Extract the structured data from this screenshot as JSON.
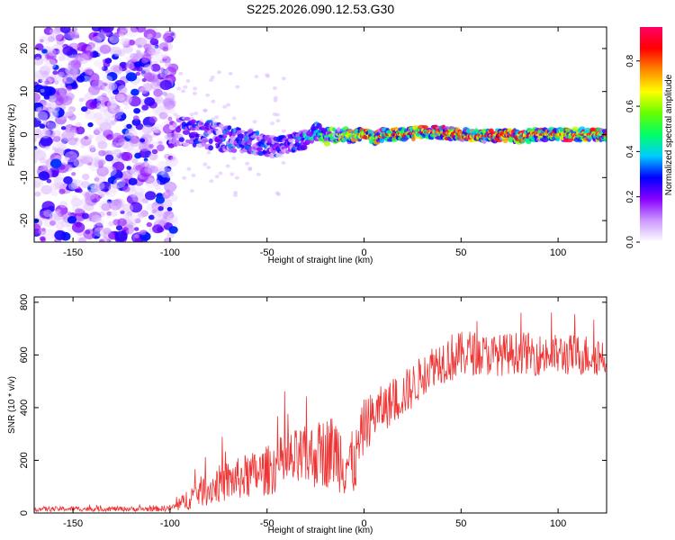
{
  "title": "S225.2026.090.12.53.G30",
  "chart_data": [
    {
      "type": "heatmap",
      "title": "S225.2026.090.12.53.G30",
      "xlabel": "Height of straight line (km)",
      "ylabel": "Frequency (Hz)",
      "xlim": [
        -170,
        125
      ],
      "ylim": [
        -25,
        25
      ],
      "xticks": [
        -150,
        -100,
        -50,
        0,
        50,
        100
      ],
      "yticks": [
        -20,
        -10,
        0,
        10,
        20
      ],
      "xtick_labels": [
        "-150",
        "-100",
        "-50",
        "0",
        "50",
        "100"
      ],
      "ytick_labels": [
        "-20",
        "-10",
        "0",
        "10",
        "20"
      ],
      "noise_region_x": [
        -170,
        -100
      ],
      "ridge": {
        "x": [
          -100,
          -90,
          -80,
          -70,
          -60,
          -50,
          -45,
          -40,
          -35,
          -30,
          -25,
          -20,
          -15,
          -10,
          -5,
          0,
          5,
          10,
          20,
          30,
          40,
          50,
          60,
          70,
          80,
          90,
          100,
          110,
          120,
          125
        ],
        "freq": [
          0.5,
          1.0,
          0.0,
          -1.0,
          -1.5,
          -2.5,
          -3.0,
          -2.5,
          -1.5,
          -1.0,
          1.0,
          -0.5,
          0.0,
          0.0,
          -0.5,
          0.5,
          -1.0,
          0.0,
          0.0,
          0.5,
          0.5,
          0.0,
          -0.5,
          0.0,
          -0.5,
          0.0,
          0.0,
          0.0,
          0.0,
          0.0
        ],
        "amplitude": [
          0.2,
          0.3,
          0.3,
          0.35,
          0.35,
          0.3,
          0.3,
          0.3,
          0.35,
          0.4,
          0.45,
          0.55,
          0.6,
          0.65,
          0.7,
          0.75,
          0.8,
          0.85,
          0.85,
          0.9,
          0.9,
          0.9,
          0.85,
          0.9,
          0.9,
          0.85,
          0.85,
          0.85,
          0.85,
          0.85
        ]
      },
      "colorbar": {
        "label": "Normalized spectral amplitude",
        "range": [
          0,
          0.95
        ],
        "ticks": [
          0.0,
          0.2,
          0.4,
          0.6,
          0.8
        ],
        "tick_labels": [
          "0.0",
          "0.2",
          "0.4",
          "0.6",
          "0.8"
        ],
        "colormap": [
          "#ffffff",
          "#cc99ff",
          "#8800ff",
          "#0000ff",
          "#00ccff",
          "#00ff66",
          "#66ff00",
          "#ffff00",
          "#ff8800",
          "#ff0000",
          "#ff0066"
        ]
      }
    },
    {
      "type": "line",
      "xlabel": "Height of straight line (km)",
      "ylabel": "SNR (10 * v/v)",
      "xlim": [
        -170,
        125
      ],
      "ylim": [
        0,
        820
      ],
      "xticks": [
        -150,
        -100,
        -50,
        0,
        50,
        100
      ],
      "yticks": [
        0,
        200,
        400,
        600,
        800
      ],
      "xtick_labels": [
        "-150",
        "-100",
        "-50",
        "0",
        "50",
        "100"
      ],
      "ytick_labels": [
        "0",
        "200",
        "400",
        "600",
        "800"
      ],
      "color": "#ee3333",
      "series": [
        {
          "name": "SNR",
          "x": [
            -170,
            -160,
            -150,
            -140,
            -130,
            -120,
            -110,
            -100,
            -95,
            -90,
            -85,
            -80,
            -75,
            -70,
            -65,
            -60,
            -55,
            -50,
            -45,
            -40,
            -35,
            -30,
            -25,
            -20,
            -15,
            -10,
            -5,
            0,
            5,
            10,
            15,
            20,
            25,
            30,
            35,
            40,
            45,
            50,
            55,
            60,
            70,
            80,
            90,
            100,
            110,
            120,
            125
          ],
          "base": [
            15,
            15,
            16,
            15,
            16,
            15,
            15,
            18,
            30,
            60,
            80,
            90,
            110,
            120,
            130,
            140,
            150,
            160,
            180,
            190,
            200,
            210,
            220,
            230,
            240,
            200,
            180,
            330,
            370,
            400,
            420,
            450,
            480,
            520,
            560,
            580,
            590,
            600,
            610,
            600,
            600,
            610,
            600,
            600,
            600,
            600,
            590
          ],
          "noise": [
            12,
            12,
            12,
            12,
            12,
            12,
            12,
            15,
            30,
            60,
            70,
            80,
            90,
            100,
            100,
            110,
            110,
            120,
            130,
            140,
            150,
            150,
            160,
            170,
            180,
            180,
            150,
            130,
            120,
            110,
            110,
            110,
            110,
            100,
            100,
            110,
            120,
            110,
            110,
            100,
            100,
            100,
            100,
            100,
            100,
            100,
            100
          ]
        }
      ]
    }
  ]
}
